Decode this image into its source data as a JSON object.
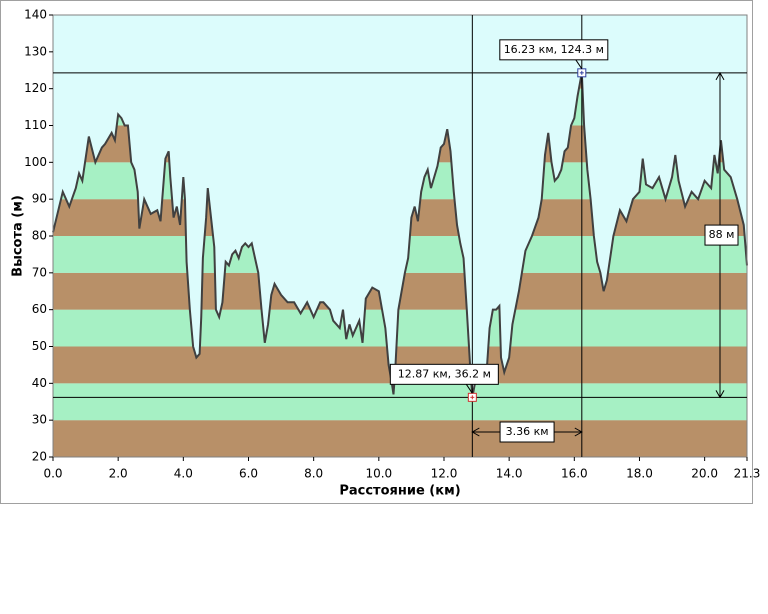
{
  "chart_data": {
    "type": "area",
    "x_label": "Расстояние (км)",
    "y_label": "Высота (м)",
    "xlim": [
      0,
      21.3
    ],
    "ylim": [
      20,
      140
    ],
    "xticks": [
      {
        "value": 0,
        "label": "0.0"
      },
      {
        "value": 2,
        "label": "2.0"
      },
      {
        "value": 4,
        "label": "4.0"
      },
      {
        "value": 6,
        "label": "6.0"
      },
      {
        "value": 8,
        "label": "8.0"
      },
      {
        "value": 10,
        "label": "10.0"
      },
      {
        "value": 12,
        "label": "12.0"
      },
      {
        "value": 14,
        "label": "14.0"
      },
      {
        "value": 16,
        "label": "16.0"
      },
      {
        "value": 18,
        "label": "18.0"
      },
      {
        "value": 20,
        "label": "20.0"
      },
      {
        "value": 21.3,
        "label": "21.3"
      }
    ],
    "yticks": [
      20,
      30,
      40,
      50,
      60,
      70,
      80,
      90,
      100,
      110,
      120,
      130,
      140
    ],
    "background": "#dcfcfc",
    "band_colors": [
      "#b89068",
      "#a6f0c4"
    ],
    "line_color": "#404040",
    "x": [
      0,
      0.3,
      0.5,
      0.7,
      0.8,
      0.9,
      1.0,
      1.1,
      1.3,
      1.5,
      1.6,
      1.8,
      1.9,
      2.0,
      2.1,
      2.2,
      2.3,
      2.4,
      2.5,
      2.6,
      2.65,
      2.8,
      3.0,
      3.2,
      3.3,
      3.45,
      3.55,
      3.6,
      3.7,
      3.8,
      3.9,
      4.0,
      4.05,
      4.1,
      4.2,
      4.3,
      4.4,
      4.5,
      4.55,
      4.6,
      4.7,
      4.75,
      4.85,
      4.95,
      5.0,
      5.1,
      5.2,
      5.3,
      5.4,
      5.5,
      5.6,
      5.7,
      5.8,
      5.9,
      6.0,
      6.1,
      6.2,
      6.3,
      6.4,
      6.5,
      6.6,
      6.7,
      6.8,
      7.0,
      7.2,
      7.4,
      7.6,
      7.8,
      8.0,
      8.2,
      8.3,
      8.5,
      8.6,
      8.8,
      8.9,
      9.0,
      9.1,
      9.2,
      9.4,
      9.5,
      9.6,
      9.8,
      10.0,
      10.2,
      10.3,
      10.4,
      10.45,
      10.5,
      10.6,
      10.8,
      10.9,
      11.0,
      11.1,
      11.2,
      11.3,
      11.4,
      11.5,
      11.6,
      11.8,
      11.9,
      12.0,
      12.1,
      12.2,
      12.3,
      12.4,
      12.5,
      12.6,
      12.7,
      12.8,
      12.87,
      12.95,
      13.1,
      13.3,
      13.4,
      13.5,
      13.6,
      13.7,
      13.75,
      13.85,
      14.0,
      14.1,
      14.3,
      14.5,
      14.7,
      14.9,
      15.0,
      15.1,
      15.2,
      15.3,
      15.4,
      15.5,
      15.6,
      15.7,
      15.8,
      15.9,
      16.0,
      16.1,
      16.23,
      16.3,
      16.4,
      16.5,
      16.6,
      16.7,
      16.8,
      16.9,
      17.0,
      17.2,
      17.4,
      17.6,
      17.8,
      18.0,
      18.1,
      18.2,
      18.4,
      18.6,
      18.8,
      19.0,
      19.1,
      19.2,
      19.4,
      19.6,
      19.8,
      20.0,
      20.2,
      20.3,
      20.4,
      20.5,
      20.6,
      20.8,
      21.0,
      21.2,
      21.3
    ],
    "values": [
      81,
      92,
      88,
      93,
      97,
      95,
      101,
      107,
      100,
      104,
      105,
      108,
      106,
      113,
      112,
      110,
      110,
      100,
      98,
      92,
      82,
      90,
      86,
      87,
      84,
      101,
      103,
      96,
      85,
      88,
      83,
      96,
      90,
      73,
      60,
      50,
      47,
      48,
      58,
      74,
      85,
      93,
      85,
      77,
      60,
      58,
      62,
      73,
      72,
      75,
      76,
      74,
      77,
      78,
      77,
      78,
      74,
      70,
      60,
      51,
      56,
      64,
      67,
      64,
      62,
      62,
      59,
      62,
      58,
      62,
      62,
      60,
      57,
      55,
      60,
      52,
      56,
      53,
      57,
      51,
      63,
      66,
      65,
      55,
      45,
      40,
      37,
      43,
      60,
      70,
      74,
      85,
      88,
      84,
      92,
      96,
      98,
      93,
      99,
      104,
      105,
      109,
      103,
      92,
      83,
      78,
      74,
      60,
      45,
      36.2,
      40,
      42,
      42,
      55,
      60,
      60,
      61,
      47,
      43,
      47,
      56,
      65,
      76,
      80,
      85,
      90,
      102,
      108,
      100,
      95,
      96,
      98,
      103,
      104,
      110,
      112,
      118,
      124.3,
      110,
      98,
      90,
      80,
      73,
      70,
      65,
      68,
      80,
      87,
      84,
      90,
      92,
      101,
      94,
      93,
      96,
      90,
      96,
      102,
      95,
      88,
      92,
      90,
      95,
      93,
      102,
      97,
      106,
      98,
      96,
      90,
      83,
      72
    ],
    "markers": [
      {
        "x": 16.23,
        "y": 124.3,
        "label": "16.23 км, 124.3 м",
        "color": "#3040a0"
      },
      {
        "x": 12.87,
        "y": 36.2,
        "label": "12.87 км, 36.2 м",
        "color": "#d03030"
      }
    ],
    "height_diff": {
      "value": 88,
      "label": "88 м"
    },
    "distance_diff": {
      "value": 3.36,
      "label": "3.36 км"
    }
  }
}
